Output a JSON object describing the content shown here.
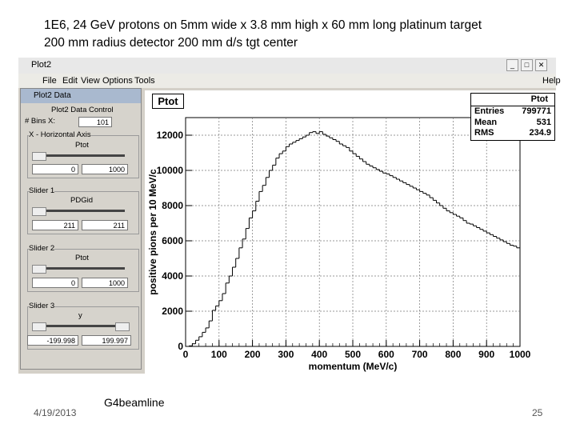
{
  "slide": {
    "title_line1": "1E6, 24 GeV protons on 5mm wide x 3.8 mm high x 60 mm long platinum target",
    "title_line2": "200 mm radius detector 200 mm d/s tgt center",
    "date": "4/19/2013",
    "footer": "G4beamline",
    "page": "25"
  },
  "window": {
    "title": "Plot2",
    "menu": [
      "File",
      "Edit",
      "View",
      "Options",
      "Tools"
    ],
    "help": "Help"
  },
  "data_control": {
    "window_title": "Plot2 Data",
    "heading": "Plot2 Data Control",
    "bins_label": "# Bins X:",
    "bins_value": "101",
    "x_axis_label": "X - Horizontal Axis",
    "x_axis_var": "Ptot",
    "x_min": "0",
    "x_max": "1000",
    "slider1_label": "Slider 1",
    "slider1_var": "PDGid",
    "slider1_min": "211",
    "slider1_max": "211",
    "slider2_label": "Slider 2",
    "slider2_var": "Ptot",
    "slider2_min": "0",
    "slider2_max": "1000",
    "slider3_label": "Slider 3",
    "slider3_var": "y",
    "slider3_min": "-199.998",
    "slider3_max": "199.997"
  },
  "plot": {
    "hist_title": "Ptot",
    "stats": {
      "name": "Ptot",
      "entries_label": "Entries",
      "entries": "799771",
      "mean_label": "Mean",
      "mean": "531",
      "rms_label": "RMS",
      "rms": "234.9"
    }
  },
  "chart_data": {
    "type": "line",
    "title": "Ptot",
    "xlabel": "momentum (MeV/c)",
    "ylabel": "positive pions per 10 MeV/c",
    "xlim": [
      0,
      1000
    ],
    "ylim": [
      0,
      13000
    ],
    "grid": true,
    "xticks": [
      "0",
      "100",
      "200",
      "300",
      "400",
      "500",
      "600",
      "700",
      "800",
      "900",
      "1000"
    ],
    "yticks": [
      "0",
      "2000",
      "4000",
      "6000",
      "8000",
      "10000",
      "12000"
    ],
    "x": [
      15,
      25,
      35,
      45,
      55,
      65,
      75,
      85,
      95,
      105,
      115,
      125,
      135,
      145,
      155,
      165,
      175,
      185,
      195,
      205,
      215,
      225,
      235,
      245,
      255,
      265,
      275,
      285,
      295,
      305,
      315,
      325,
      335,
      345,
      355,
      365,
      375,
      385,
      395,
      405,
      415,
      425,
      435,
      445,
      455,
      465,
      475,
      485,
      495,
      505,
      515,
      525,
      535,
      545,
      555,
      565,
      575,
      585,
      595,
      605,
      615,
      625,
      635,
      645,
      655,
      665,
      675,
      685,
      695,
      705,
      715,
      725,
      735,
      745,
      755,
      765,
      775,
      785,
      795,
      805,
      815,
      825,
      835,
      845,
      855,
      865,
      875,
      885,
      895,
      905,
      915,
      925,
      935,
      945,
      955,
      965,
      975,
      985,
      995
    ],
    "values": [
      30,
      150,
      350,
      550,
      800,
      1050,
      1450,
      2050,
      2300,
      2600,
      3000,
      3600,
      4000,
      4500,
      5000,
      5600,
      6100,
      6700,
      7300,
      7700,
      8250,
      8800,
      9150,
      9600,
      10000,
      10300,
      10700,
      10950,
      11100,
      11350,
      11500,
      11600,
      11700,
      11800,
      11900,
      12000,
      12150,
      12200,
      12100,
      12200,
      12050,
      11950,
      11850,
      11750,
      11650,
      11500,
      11400,
      11300,
      11100,
      10950,
      10800,
      10650,
      10500,
      10350,
      10250,
      10150,
      10050,
      9950,
      9850,
      9800,
      9700,
      9600,
      9500,
      9400,
      9300,
      9200,
      9100,
      9000,
      8900,
      8800,
      8700,
      8600,
      8450,
      8300,
      8150,
      8000,
      7850,
      7700,
      7600,
      7500,
      7400,
      7300,
      7150,
      7000,
      6950,
      6850,
      6750,
      6650,
      6550,
      6450,
      6350,
      6250,
      6150,
      6050,
      5950,
      5850,
      5750,
      5700,
      5600
    ]
  }
}
